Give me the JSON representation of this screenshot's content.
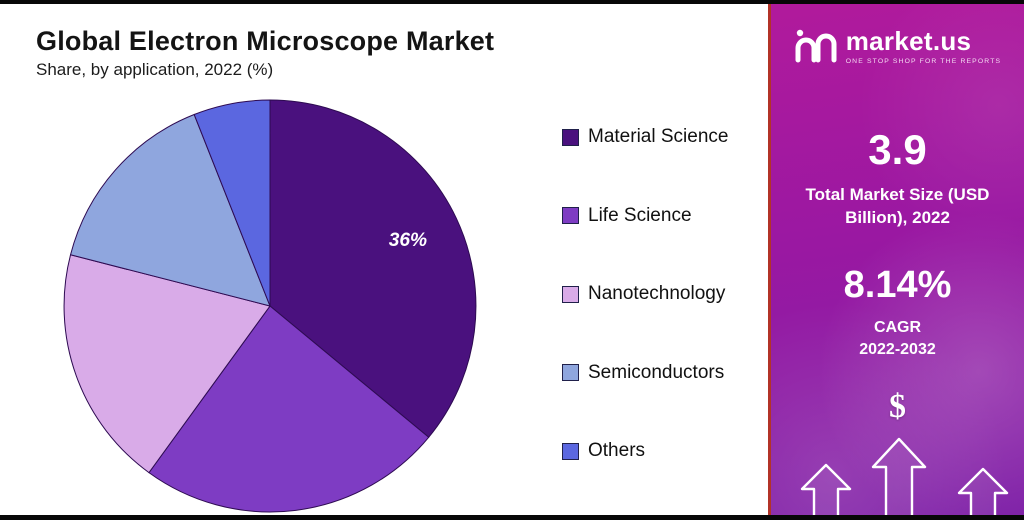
{
  "header": {
    "title": "Global Electron Microscope Market",
    "subtitle": "Share, by application, 2022 (%)"
  },
  "chart_data": {
    "type": "pie",
    "title": "Global Electron Microscope Market",
    "subtitle": "Share, by application, 2022 (%)",
    "unit": "%",
    "legend_position": "right",
    "start_angle_deg": 0,
    "slices": [
      {
        "label": "Material Science",
        "value": 36,
        "color": "#4a117e",
        "show_label": true
      },
      {
        "label": "Life Science",
        "value": 24,
        "color": "#7e3cc3",
        "show_label": false
      },
      {
        "label": "Nanotechnology",
        "value": 19,
        "color": "#d9abe8",
        "show_label": false
      },
      {
        "label": "Semiconductors",
        "value": 15,
        "color": "#8fa6de",
        "show_label": false
      },
      {
        "label": "Others",
        "value": 6,
        "color": "#5b67e0",
        "show_label": false
      }
    ]
  },
  "sidebar": {
    "logo_text": "market.us",
    "logo_tagline": "ONE STOP SHOP FOR THE REPORTS",
    "market_size_value": "3.9",
    "market_size_label": "Total Market Size (USD Billion), 2022",
    "cagr_value": "8.14%",
    "cagr_label": "CAGR",
    "cagr_period": "2022-2032",
    "dollar_icon": "$",
    "colors": {
      "panel_gradient_start": "#b11a9c",
      "panel_gradient_end": "#7e20a7",
      "panel_border": "#b23327"
    }
  }
}
